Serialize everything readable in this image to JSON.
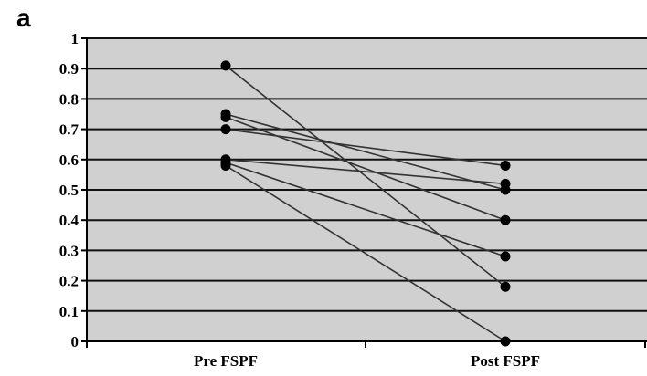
{
  "panel_label": "a",
  "chart_data": {
    "type": "line",
    "categories": [
      "Pre FSPF",
      "Post FSPF"
    ],
    "ylim": [
      0,
      1
    ],
    "yticks": [
      "0",
      "0.1",
      "0.2",
      "0.3",
      "0.4",
      "0.5",
      "0.6",
      "0.7",
      "0.8",
      "0.9",
      "1"
    ],
    "grid": true,
    "legend": "none",
    "series": [
      {
        "values": [
          0.91,
          0.18
        ]
      },
      {
        "values": [
          0.75,
          0.5
        ]
      },
      {
        "values": [
          0.74,
          0.4
        ]
      },
      {
        "values": [
          0.7,
          0.58
        ]
      },
      {
        "values": [
          0.6,
          0.52
        ]
      },
      {
        "values": [
          0.59,
          0.28
        ]
      },
      {
        "values": [
          0.58,
          0.0
        ]
      }
    ],
    "colors": {
      "plot_background": "#d0d0d0",
      "gridline": "#111111",
      "line": "#333333",
      "marker": "#000000"
    }
  }
}
